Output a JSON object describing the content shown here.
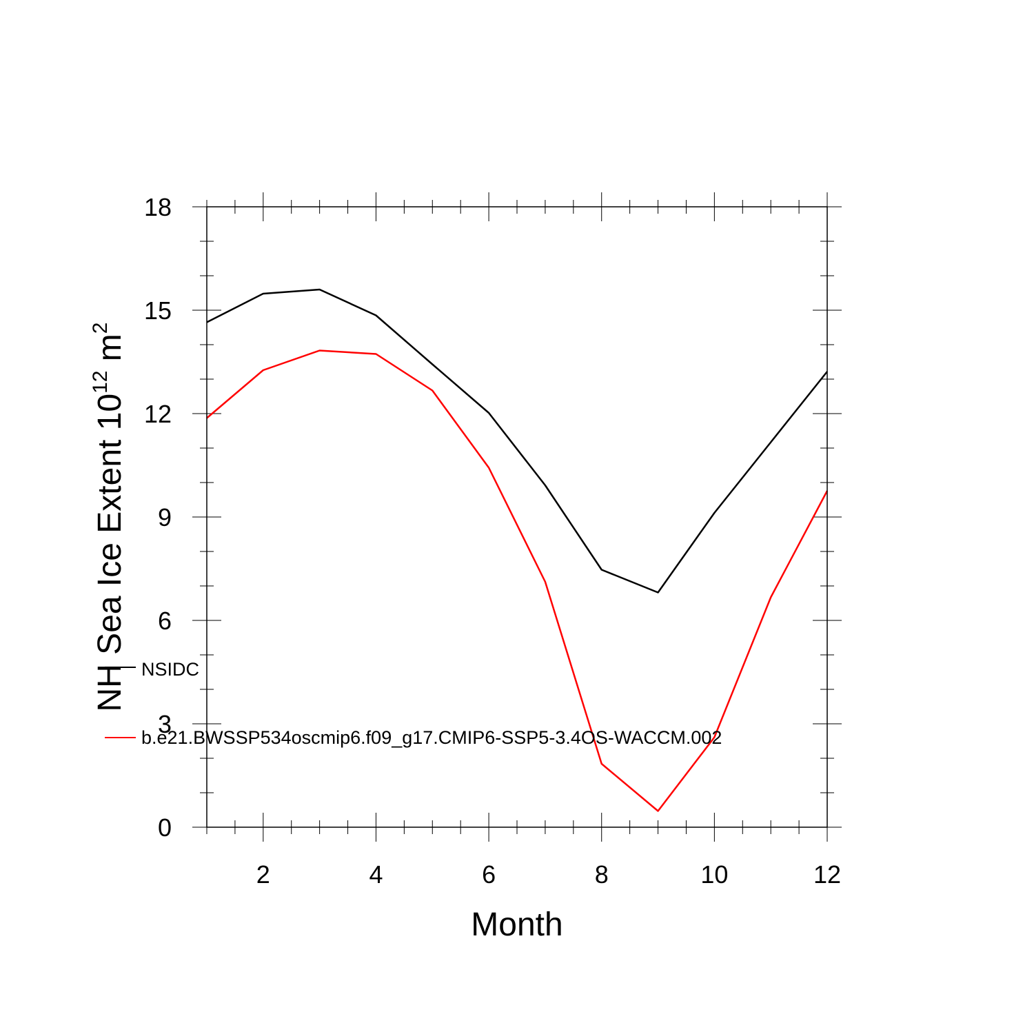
{
  "chart_data": {
    "type": "line",
    "title": "",
    "xlabel": "Month",
    "ylabel": {
      "main": "NH Sea Ice Extent 10",
      "exp1": "12",
      "mid": " m",
      "exp2": "2"
    },
    "xlim": [
      1,
      12
    ],
    "ylim": [
      0,
      18
    ],
    "xticks": [
      2,
      4,
      6,
      8,
      10,
      12
    ],
    "yticks": [
      0,
      3,
      6,
      9,
      12,
      15,
      18
    ],
    "x": [
      1,
      2,
      3,
      4,
      5,
      6,
      7,
      8,
      9,
      10,
      11,
      12
    ],
    "series": [
      {
        "name": "NSIDC",
        "color": "#000000",
        "values": [
          14.65,
          15.48,
          15.6,
          14.85,
          13.43,
          12.02,
          9.92,
          7.47,
          6.81,
          9.12,
          11.17,
          13.22
        ]
      },
      {
        "name": "b.e21.BWSSP534oscmip6.f09_g17.CMIP6-SSP5-3.4OS-WACCM.002",
        "color": "#ff0000",
        "values": [
          11.87,
          13.26,
          13.83,
          13.73,
          12.67,
          10.43,
          7.12,
          1.84,
          0.47,
          2.61,
          6.67,
          9.76
        ]
      }
    ],
    "grid": false,
    "legend": "lower-left, inside plot"
  }
}
